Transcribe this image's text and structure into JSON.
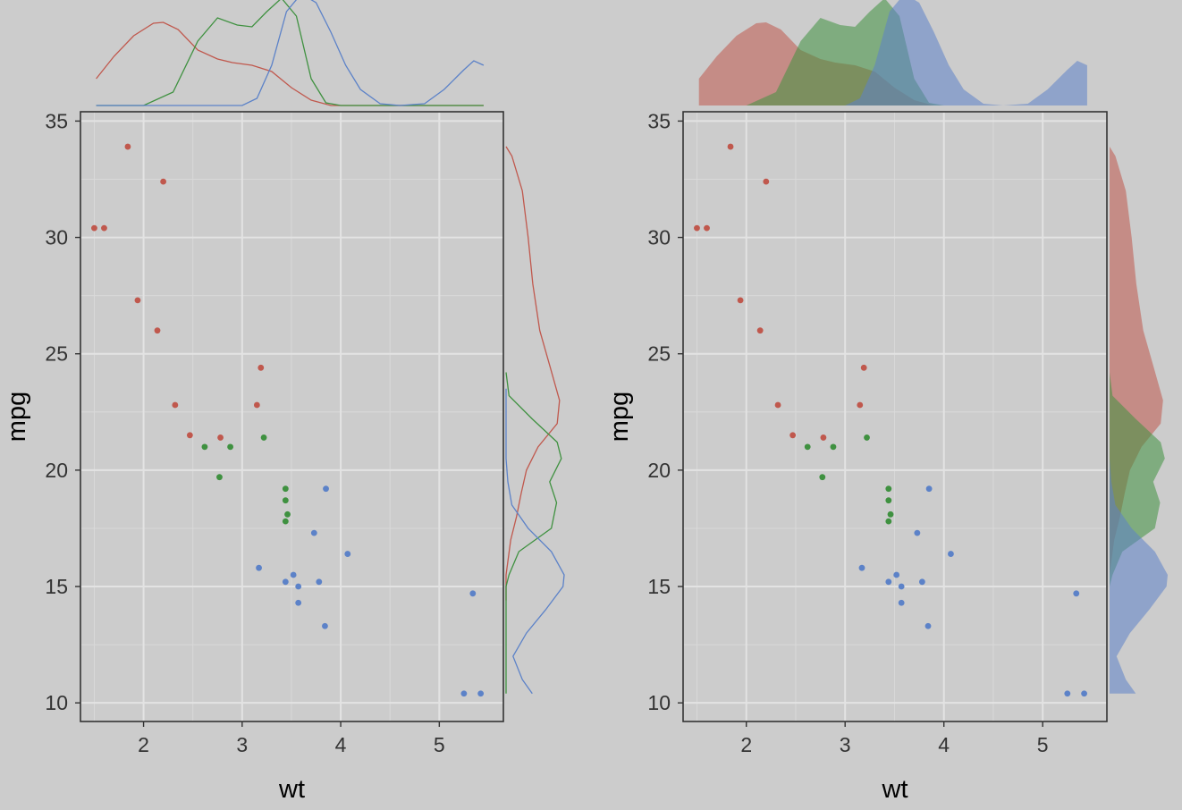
{
  "chart_data": [
    {
      "type": "scatter",
      "variant": "marginal-density-lines",
      "xlabel": "wt",
      "ylabel": "mpg",
      "xlim": [
        1.36,
        5.65
      ],
      "ylim": [
        9.2,
        35.4
      ],
      "x_ticks": [
        2,
        3,
        4,
        5
      ],
      "y_ticks": [
        10,
        15,
        20,
        25,
        30,
        35
      ],
      "grid": true,
      "legend": "none",
      "marginal_fill": false
    },
    {
      "type": "scatter",
      "variant": "marginal-density-filled",
      "xlabel": "wt",
      "ylabel": "mpg",
      "xlim": [
        1.36,
        5.65
      ],
      "ylim": [
        9.2,
        35.4
      ],
      "x_ticks": [
        2,
        3,
        4,
        5
      ],
      "y_ticks": [
        10,
        15,
        20,
        25,
        30,
        35
      ],
      "grid": true,
      "legend": "none",
      "marginal_fill": true
    }
  ],
  "series": [
    {
      "color": "#c0584d",
      "points": [
        [
          1.5,
          30.4
        ],
        [
          1.6,
          30.4
        ],
        [
          1.84,
          33.9
        ],
        [
          1.94,
          27.3
        ],
        [
          2.14,
          26.0
        ],
        [
          2.2,
          32.4
        ],
        [
          2.32,
          22.8
        ],
        [
          2.47,
          21.5
        ],
        [
          2.78,
          21.4
        ],
        [
          3.15,
          22.8
        ],
        [
          3.19,
          24.4
        ]
      ],
      "density_x": [
        [
          1.52,
          0.3
        ],
        [
          1.7,
          0.55
        ],
        [
          1.9,
          0.78
        ],
        [
          2.1,
          0.92
        ],
        [
          2.2,
          0.93
        ],
        [
          2.35,
          0.85
        ],
        [
          2.55,
          0.62
        ],
        [
          2.75,
          0.52
        ],
        [
          2.9,
          0.48
        ],
        [
          3.1,
          0.45
        ],
        [
          3.3,
          0.38
        ],
        [
          3.5,
          0.2
        ],
        [
          3.7,
          0.06
        ],
        [
          3.9,
          0.0
        ],
        [
          5.45,
          0.0
        ]
      ],
      "density_y": [
        [
          33.9,
          0.0
        ],
        [
          33.5,
          0.1
        ],
        [
          32.0,
          0.28
        ],
        [
          30.0,
          0.38
        ],
        [
          28.0,
          0.46
        ],
        [
          26.0,
          0.58
        ],
        [
          24.5,
          0.75
        ],
        [
          23.0,
          0.92
        ],
        [
          22.0,
          0.88
        ],
        [
          21.0,
          0.55
        ],
        [
          20.0,
          0.35
        ],
        [
          19.0,
          0.26
        ],
        [
          18.0,
          0.18
        ],
        [
          17.0,
          0.08
        ],
        [
          15.5,
          0.0
        ],
        [
          14.4,
          0.0
        ]
      ]
    },
    {
      "color": "#3f9140",
      "points": [
        [
          2.62,
          21.0
        ],
        [
          2.77,
          19.7
        ],
        [
          2.88,
          21.0
        ],
        [
          3.22,
          21.4
        ],
        [
          3.44,
          19.2
        ],
        [
          3.44,
          17.8
        ],
        [
          3.46,
          18.1
        ],
        [
          3.44,
          18.7
        ]
      ],
      "density_x": [
        [
          1.52,
          0.0
        ],
        [
          2.0,
          0.0
        ],
        [
          2.3,
          0.15
        ],
        [
          2.55,
          0.72
        ],
        [
          2.75,
          0.98
        ],
        [
          2.95,
          0.9
        ],
        [
          3.1,
          0.88
        ],
        [
          3.25,
          1.05
        ],
        [
          3.4,
          1.2
        ],
        [
          3.55,
          1.0
        ],
        [
          3.7,
          0.3
        ],
        [
          3.85,
          0.03
        ],
        [
          4.0,
          0.0
        ],
        [
          5.45,
          0.0
        ]
      ],
      "density_y": [
        [
          10.4,
          0.0
        ],
        [
          15.0,
          0.0
        ],
        [
          15.5,
          0.05
        ],
        [
          16.5,
          0.22
        ],
        [
          17.5,
          0.78
        ],
        [
          18.6,
          0.87
        ],
        [
          19.5,
          0.75
        ],
        [
          20.5,
          0.95
        ],
        [
          21.2,
          0.88
        ],
        [
          22.2,
          0.45
        ],
        [
          23.2,
          0.05
        ],
        [
          24.2,
          0.0
        ]
      ]
    },
    {
      "color": "#5c82c8",
      "points": [
        [
          3.17,
          15.8
        ],
        [
          3.44,
          15.2
        ],
        [
          3.52,
          15.5
        ],
        [
          3.57,
          15.0
        ],
        [
          3.57,
          14.3
        ],
        [
          3.73,
          17.3
        ],
        [
          3.78,
          15.2
        ],
        [
          3.84,
          13.3
        ],
        [
          3.85,
          19.2
        ],
        [
          4.07,
          16.4
        ],
        [
          5.25,
          10.4
        ],
        [
          5.34,
          14.7
        ],
        [
          5.42,
          10.4
        ]
      ],
      "density_x": [
        [
          1.52,
          0.0
        ],
        [
          3.0,
          0.0
        ],
        [
          3.15,
          0.08
        ],
        [
          3.3,
          0.45
        ],
        [
          3.45,
          1.05
        ],
        [
          3.6,
          1.25
        ],
        [
          3.75,
          1.15
        ],
        [
          3.9,
          0.82
        ],
        [
          4.05,
          0.45
        ],
        [
          4.2,
          0.18
        ],
        [
          4.4,
          0.02
        ],
        [
          4.6,
          0.0
        ],
        [
          4.85,
          0.02
        ],
        [
          5.05,
          0.18
        ],
        [
          5.25,
          0.4
        ],
        [
          5.35,
          0.5
        ],
        [
          5.45,
          0.45
        ]
      ],
      "density_y": [
        [
          10.4,
          0.45
        ],
        [
          11.0,
          0.28
        ],
        [
          12.0,
          0.12
        ],
        [
          13.0,
          0.35
        ],
        [
          14.0,
          0.68
        ],
        [
          15.0,
          0.98
        ],
        [
          15.5,
          1.0
        ],
        [
          16.5,
          0.78
        ],
        [
          17.5,
          0.38
        ],
        [
          18.5,
          0.1
        ],
        [
          19.5,
          0.03
        ],
        [
          20.5,
          0.0
        ],
        [
          23.5,
          0.0
        ]
      ]
    }
  ]
}
